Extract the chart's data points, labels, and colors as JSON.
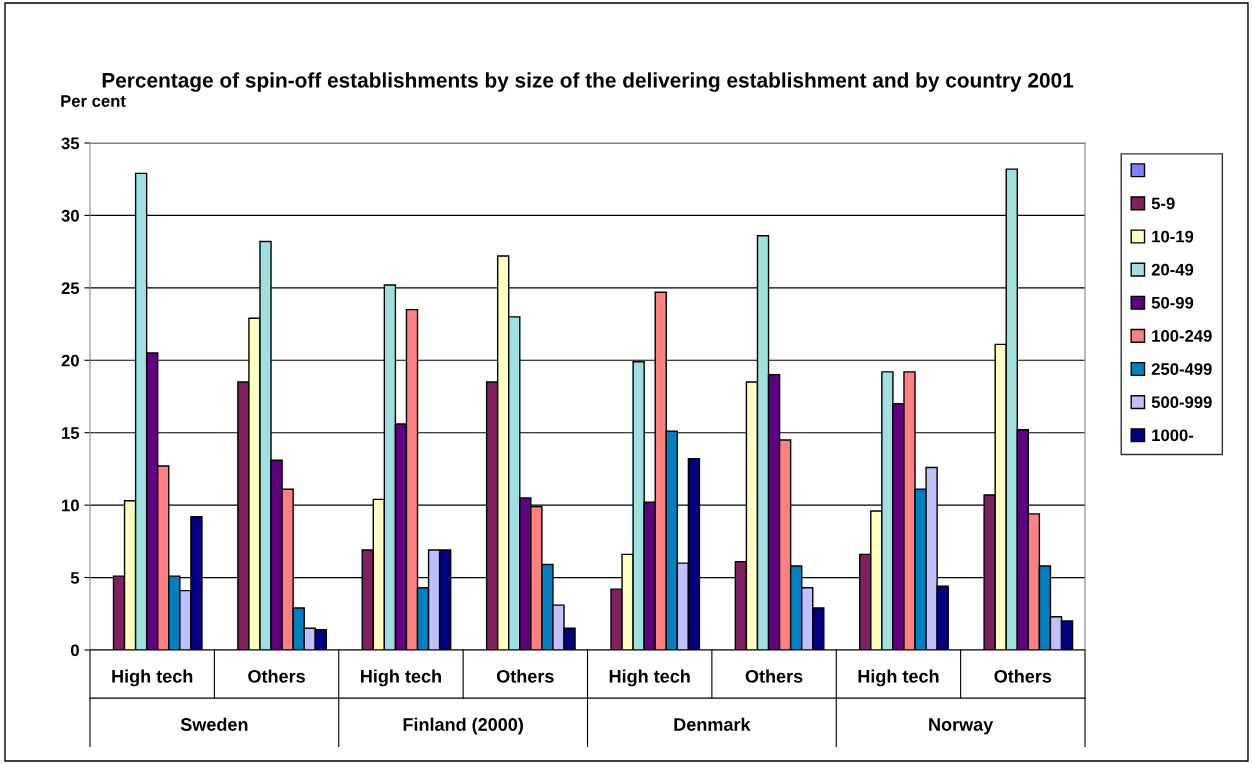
{
  "chart_data": {
    "type": "bar",
    "title": "Percentage of spin-off establishments by size of the delivering establishment and by country 2001",
    "ylabel": "Per cent",
    "categories": [
      "High tech",
      "Others",
      "High tech",
      "Others",
      "High tech",
      "Others",
      "High tech",
      "Others"
    ],
    "annotations": [
      "Sweden",
      "Finland (2000)",
      "Denmark",
      "Norway"
    ],
    "series": [
      {
        "color": "#8080ff",
        "values": [
          null,
          null,
          null,
          null,
          null,
          null,
          null,
          null
        ]
      },
      {
        "name": "5-9",
        "color": "#802060",
        "values": [
          5.1,
          18.5,
          6.9,
          18.5,
          4.2,
          6.1,
          6.6,
          10.7
        ]
      },
      {
        "name": "10-19",
        "color": "#ffffc0",
        "values": [
          10.3,
          22.9,
          10.4,
          27.2,
          6.6,
          18.5,
          9.6,
          21.1
        ]
      },
      {
        "name": "20-49",
        "color": "#a0e0e0",
        "values": [
          32.9,
          28.2,
          25.2,
          23.0,
          19.9,
          28.6,
          19.2,
          33.2
        ]
      },
      {
        "name": "50-99",
        "color": "#600080",
        "values": [
          20.5,
          13.1,
          15.6,
          10.5,
          10.2,
          19.0,
          17.0,
          15.2
        ]
      },
      {
        "name": "100-249",
        "color": "#ff8080",
        "values": [
          12.7,
          11.1,
          23.5,
          9.9,
          24.7,
          14.5,
          19.2,
          9.4
        ]
      },
      {
        "name": "250-499",
        "color": "#0080c0",
        "values": [
          5.1,
          2.9,
          4.3,
          5.9,
          15.1,
          5.8,
          11.1,
          5.8
        ]
      },
      {
        "name": "500-999",
        "color": "#c0c0ff",
        "values": [
          4.1,
          1.5,
          6.9,
          3.1,
          6.0,
          4.3,
          12.6,
          2.3
        ]
      },
      {
        "name": "1000-",
        "color": "#000080",
        "values": [
          9.2,
          1.4,
          6.9,
          1.5,
          13.2,
          2.9,
          4.4,
          2.0
        ]
      }
    ],
    "ylim": [
      0,
      35
    ],
    "yticks": [
      0,
      5,
      10,
      15,
      20,
      25,
      30,
      35
    ],
    "grid": "y",
    "legend": "right"
  }
}
